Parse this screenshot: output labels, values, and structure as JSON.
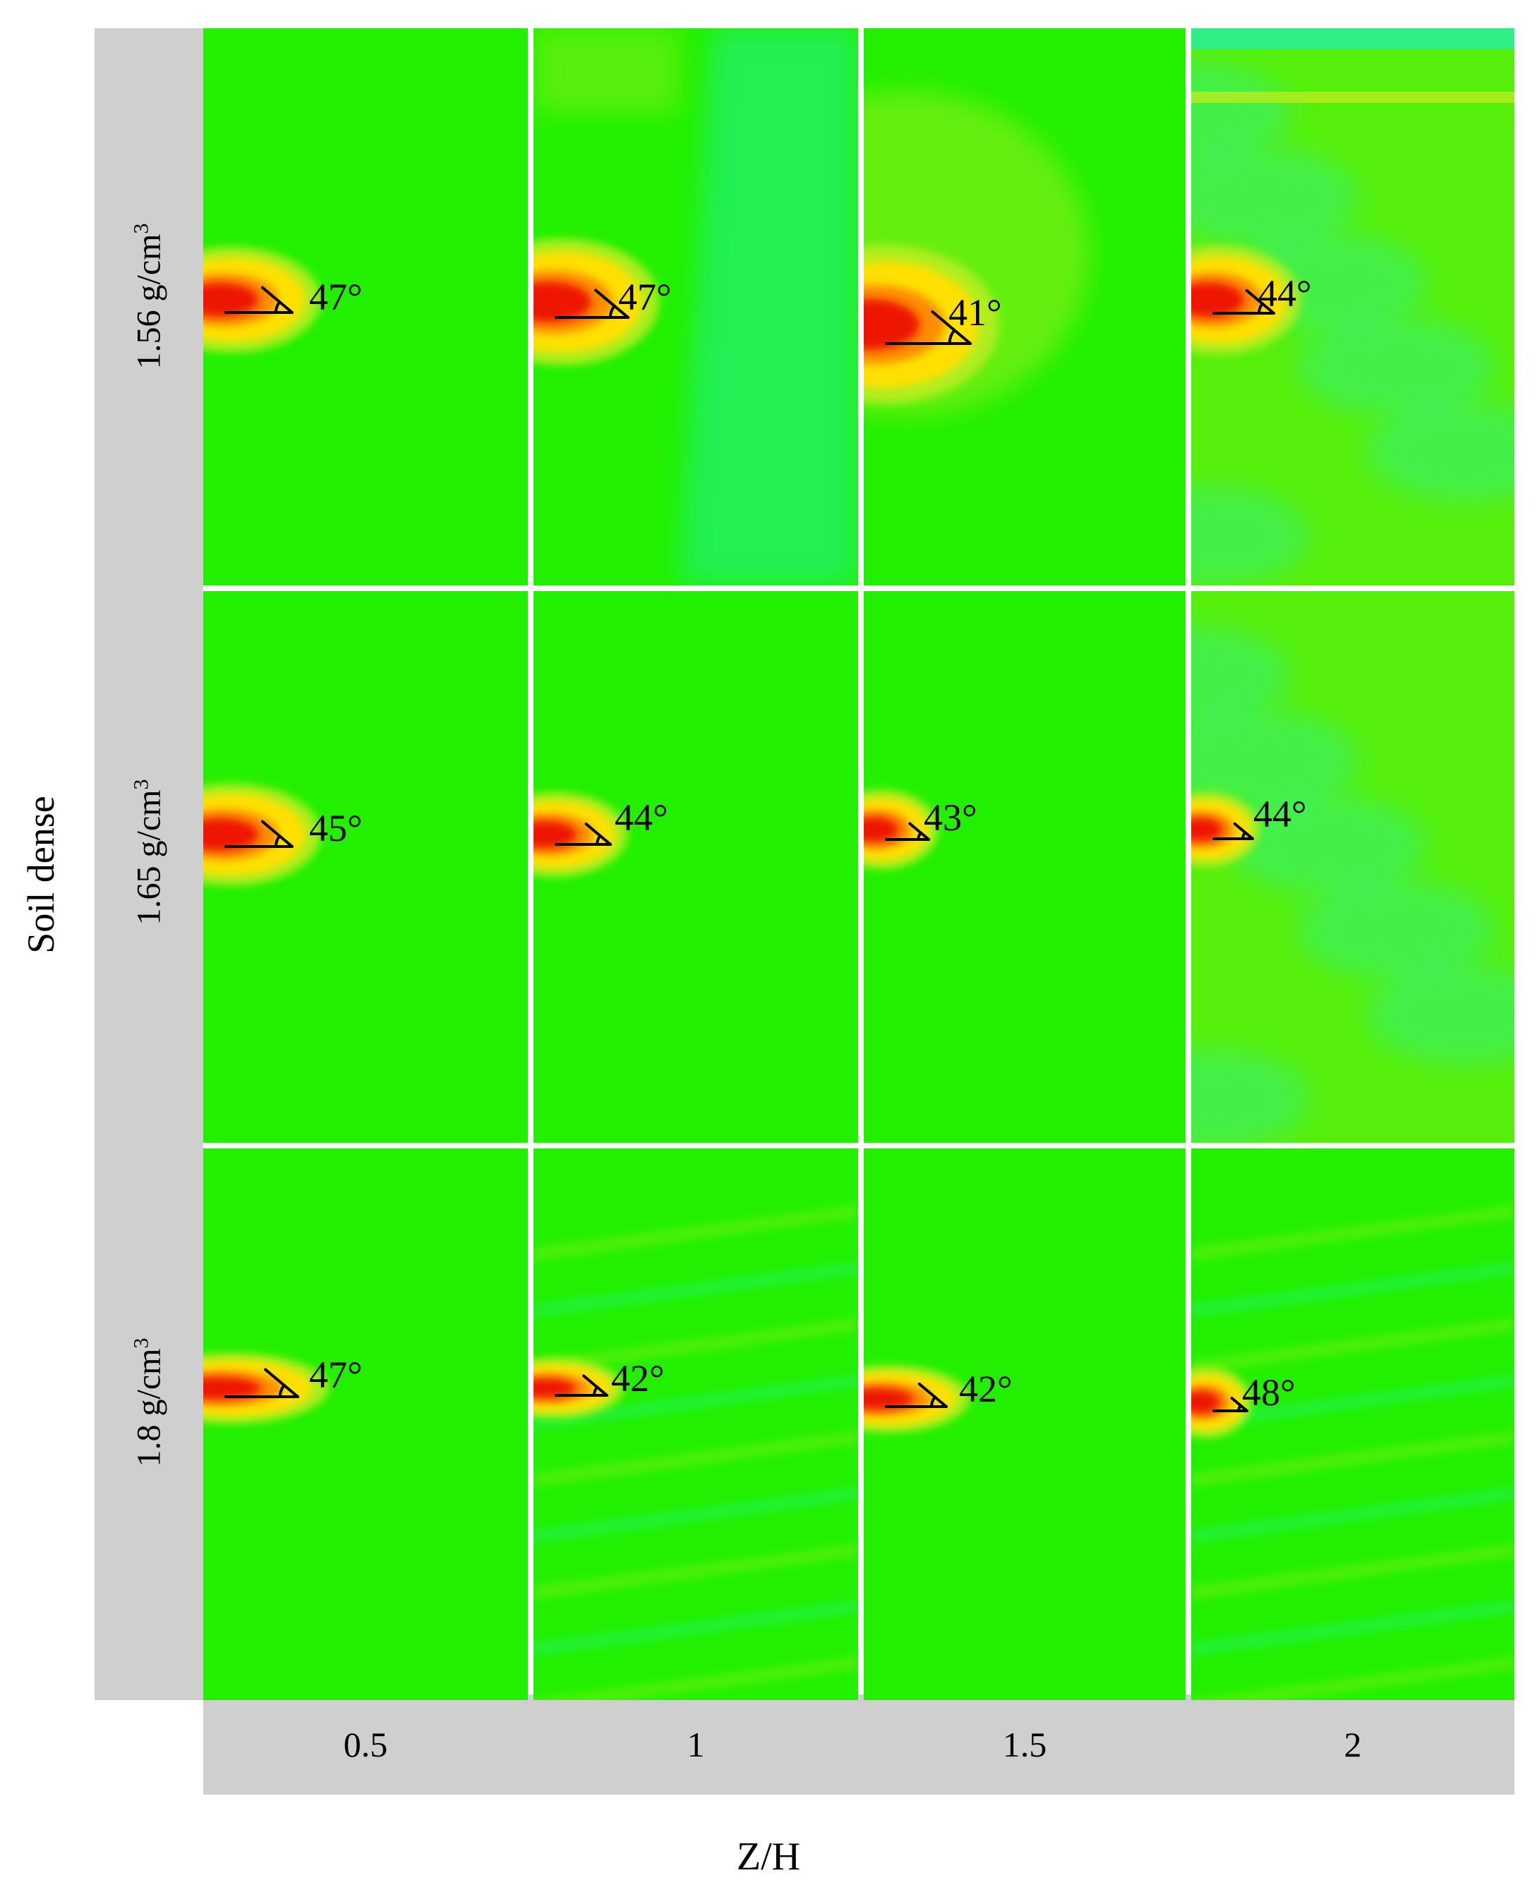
{
  "figure": {
    "axis_y_label": "Soil dense",
    "axis_x_label": "Z/H",
    "colors": {
      "base": "#22f000",
      "cyan": "#20f0b8",
      "yellow_green": "#b8ee20",
      "yellow": "#ffe000",
      "orange": "#ff8c00",
      "red": "#ee1400",
      "label_strip": "#cfcfcf"
    },
    "columns": [
      {
        "label": "0.5"
      },
      {
        "label": "1"
      },
      {
        "label": "1.5"
      },
      {
        "label": "2"
      }
    ],
    "rows": [
      {
        "label_base": "1.56 g/cm",
        "label_sup": "3"
      },
      {
        "label_base": "1.65 g/cm",
        "label_sup": "3"
      },
      {
        "label_base": "1.8 g/cm",
        "label_sup": "3"
      }
    ],
    "panels": [
      {
        "row": 0,
        "col": 0,
        "angle": "47°",
        "texture": "plain"
      },
      {
        "row": 0,
        "col": 1,
        "angle": "47°",
        "texture": "cyan"
      },
      {
        "row": 0,
        "col": 2,
        "angle": "41°",
        "texture": "yellow"
      },
      {
        "row": 0,
        "col": 3,
        "angle": "44°",
        "texture": "mixed"
      },
      {
        "row": 1,
        "col": 0,
        "angle": "45°",
        "texture": "plain"
      },
      {
        "row": 1,
        "col": 1,
        "angle": "44°",
        "texture": "plain"
      },
      {
        "row": 1,
        "col": 2,
        "angle": "43°",
        "texture": "plain"
      },
      {
        "row": 1,
        "col": 3,
        "angle": "44°",
        "texture": "mixed"
      },
      {
        "row": 2,
        "col": 0,
        "angle": "47°",
        "texture": "plain"
      },
      {
        "row": 2,
        "col": 1,
        "angle": "42°",
        "texture": "streaks"
      },
      {
        "row": 2,
        "col": 2,
        "angle": "42°",
        "texture": "plain"
      },
      {
        "row": 2,
        "col": 3,
        "angle": "48°",
        "texture": "streaks"
      }
    ]
  }
}
